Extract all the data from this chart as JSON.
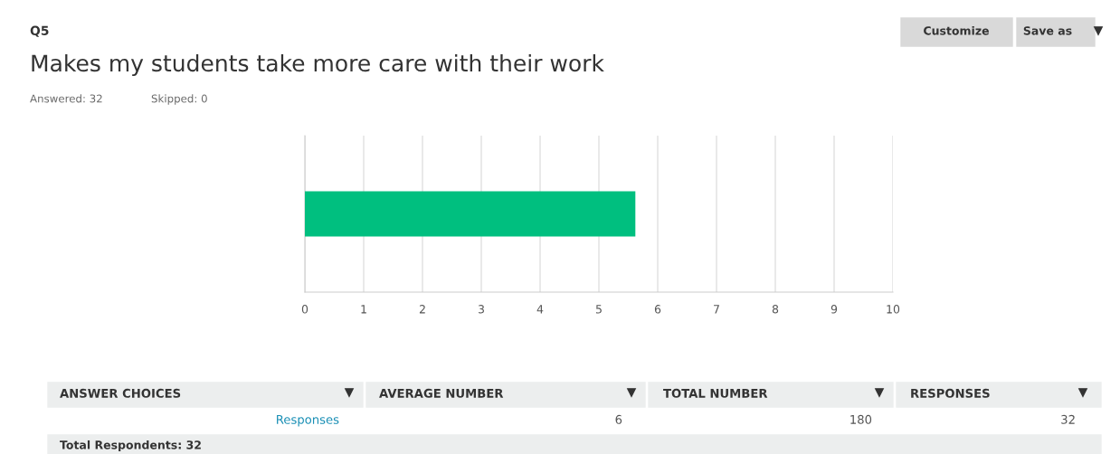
{
  "chart_data": {
    "type": "bar",
    "orientation": "horizontal",
    "title": "Makes my students take more care with their work",
    "categories": [
      null
    ],
    "values": [
      5.62
    ],
    "color": "#00bf7f",
    "xlim": [
      0,
      10
    ],
    "xticks": [
      0,
      1,
      2,
      3,
      4,
      5,
      6,
      7,
      8,
      9,
      10
    ],
    "grid": "x",
    "legend": false,
    "annotations": [
      "Q5",
      "Answered: 32",
      "Skipped: 0",
      "Customize",
      "Save as",
      "ANSWER CHOICES",
      "AVERAGE NUMBER",
      "TOTAL NUMBER",
      "RESPONSES",
      "Responses",
      "6",
      "180",
      "32",
      "Total Respondents: 32"
    ]
  }
}
